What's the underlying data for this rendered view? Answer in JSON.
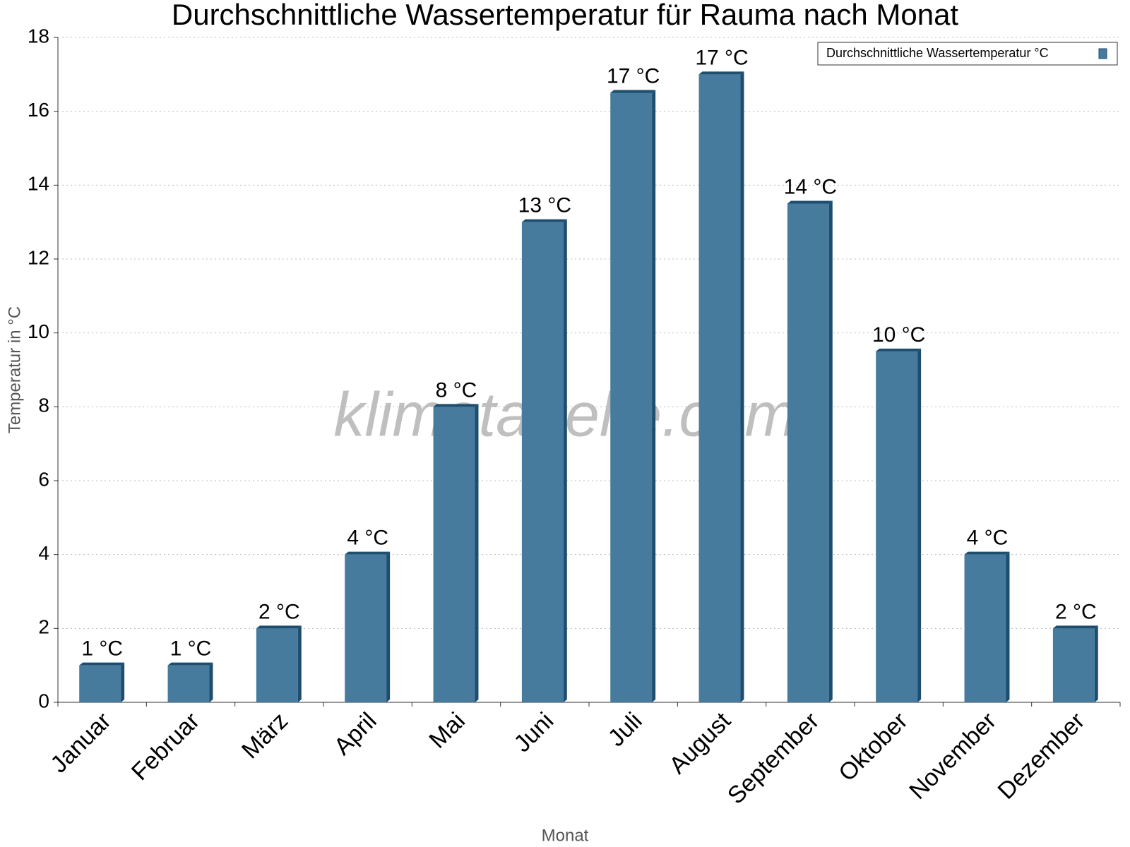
{
  "chart_data": {
    "type": "bar",
    "title": "Durchschnittliche Wassertemperatur für Rauma nach Monat",
    "x_label": "Monat",
    "y_label": "Temperatur in °C",
    "watermark": "klimatabelle.com",
    "categories": [
      "Januar",
      "Februar",
      "März",
      "April",
      "Mai",
      "Juni",
      "Juli",
      "August",
      "September",
      "Oktober",
      "November",
      "Dezember"
    ],
    "series": [
      {
        "name": "Durchschnittliche Wassertemperatur °C",
        "color": "#467b9e",
        "values": [
          1,
          1,
          2,
          4,
          8,
          13,
          16.5,
          17,
          13.5,
          9.5,
          4,
          2
        ],
        "value_labels": [
          "1 °C",
          "1 °C",
          "2 °C",
          "4 °C",
          "8 °C",
          "13 °C",
          "17 °C",
          "17 °C",
          "14 °C",
          "10 °C",
          "4 °C",
          "2 °C"
        ]
      }
    ],
    "ylim": [
      0,
      18
    ],
    "yticks": [
      0,
      2,
      4,
      6,
      8,
      10,
      12,
      14,
      16,
      18
    ],
    "grid": true,
    "legend": "upper right"
  }
}
